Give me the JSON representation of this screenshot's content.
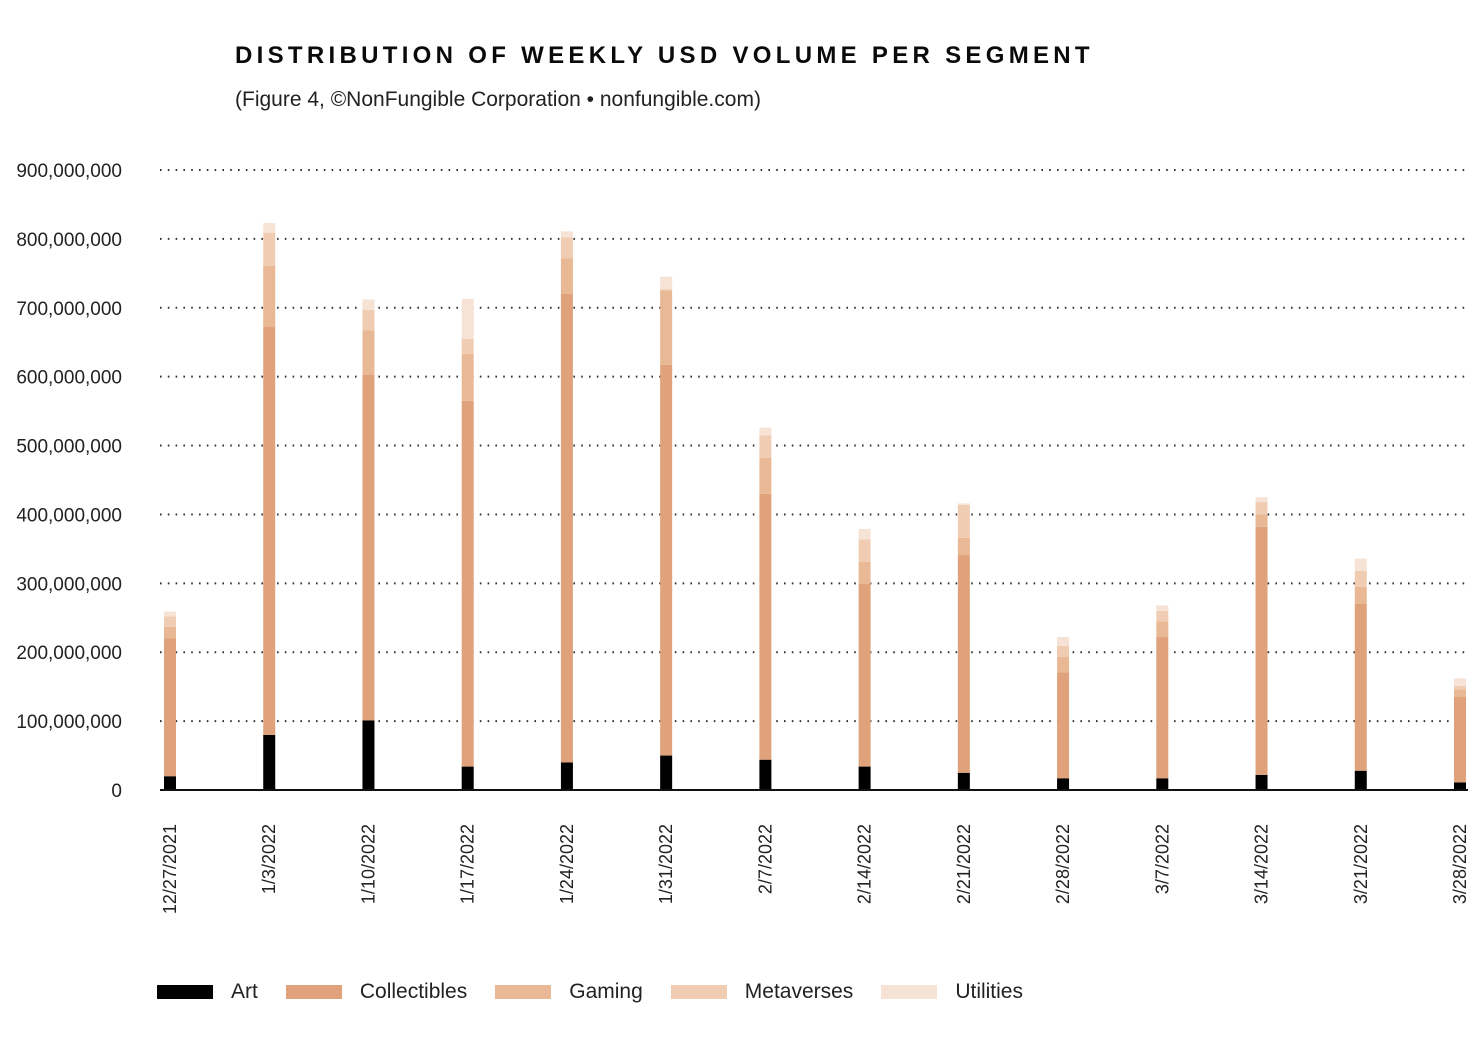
{
  "title": "DISTRIBUTION OF WEEKLY USD VOLUME PER SEGMENT",
  "subtitle": "(Figure 4, ©NonFungible Corporation • nonfungible.com)",
  "colors": {
    "Art": "#000000",
    "Collectibles": "#dfa27a",
    "Gaming": "#e8b994",
    "Metaverses": "#f0cdb2",
    "Utilities": "#f6e3d5"
  },
  "chart_data": {
    "type": "bar",
    "stacked": true,
    "title": "DISTRIBUTION OF WEEKLY USD VOLUME PER SEGMENT",
    "subtitle": "(Figure 4, ©NonFungible Corporation • nonfungible.com)",
    "xlabel": "",
    "ylabel": "",
    "ylim": [
      0,
      900000000
    ],
    "y_ticks": [
      "900,000,000",
      "800,000,000",
      "700,000,000",
      "600,000,000",
      "500,000,000",
      "400,000,000",
      "300,000,000",
      "200,000,000",
      "100,000,000",
      "0"
    ],
    "grid": "horizontal dotted",
    "legend_position": "bottom",
    "categories": [
      "12/27/2021",
      "1/3/2022",
      "1/10/2022",
      "1/17/2022",
      "1/24/2022",
      "1/31/2022",
      "2/7/2022",
      "2/14/2022",
      "2/21/2022",
      "2/28/2022",
      "3/7/2022",
      "3/14/2022",
      "3/21/2022",
      "3/28/2022"
    ],
    "series": [
      {
        "name": "Art",
        "values": [
          20000000,
          80000000,
          101000000,
          34000000,
          40000000,
          50000000,
          44000000,
          34000000,
          25000000,
          17000000,
          17000000,
          22000000,
          28000000,
          11000000
        ]
      },
      {
        "name": "Collectibles",
        "values": [
          200000000,
          593000000,
          502000000,
          531000000,
          680000000,
          567000000,
          386000000,
          265000000,
          316000000,
          154000000,
          205000000,
          360000000,
          242000000,
          124000000
        ]
      },
      {
        "name": "Gaming",
        "values": [
          17000000,
          88000000,
          64000000,
          68000000,
          52000000,
          108000000,
          52000000,
          32000000,
          25000000,
          22000000,
          23000000,
          18000000,
          25000000,
          11000000
        ]
      },
      {
        "name": "Metaverses",
        "values": [
          15000000,
          48000000,
          30000000,
          22000000,
          30000000,
          2000000,
          33000000,
          33000000,
          48000000,
          16000000,
          15000000,
          18000000,
          23000000,
          5000000
        ]
      },
      {
        "name": "Utilities",
        "values": [
          7000000,
          14000000,
          15000000,
          58000000,
          9000000,
          18000000,
          11000000,
          15000000,
          2000000,
          13000000,
          8000000,
          7000000,
          18000000,
          11000000
        ]
      }
    ]
  }
}
